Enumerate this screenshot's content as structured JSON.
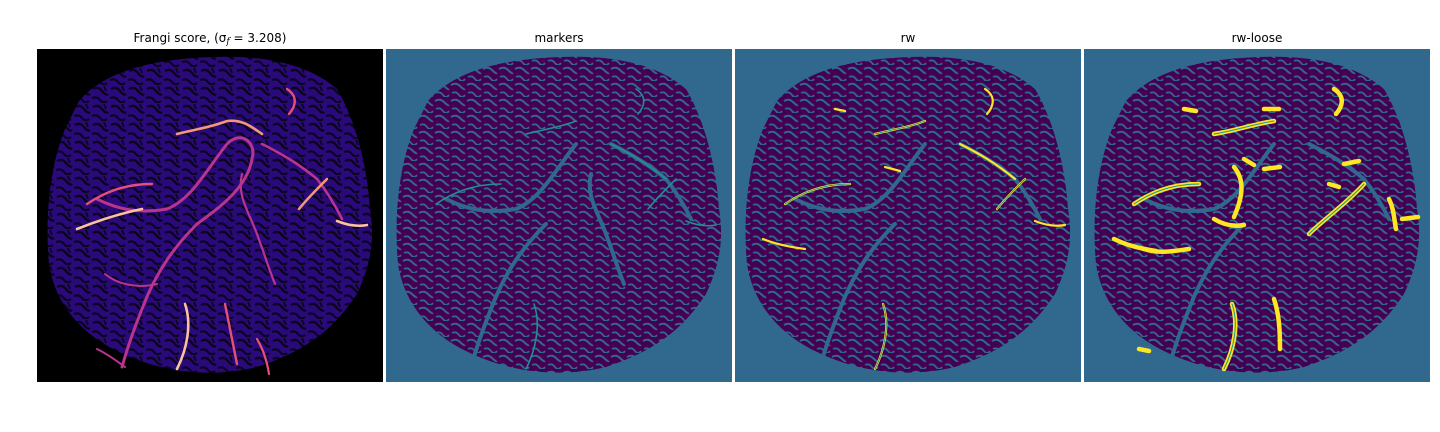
{
  "panels": [
    {
      "title": "Frangi score, (σ",
      "title_sub": "f",
      "title_suffix": " = 3.208)",
      "colormap": "magma",
      "background": "#000000"
    },
    {
      "title": "markers",
      "colormap": "viridis",
      "background": "#31688e"
    },
    {
      "title": "rw",
      "colormap": "viridis",
      "background": "#31688e"
    },
    {
      "title": "rw-loose",
      "colormap": "viridis",
      "background": "#31688e"
    }
  ],
  "colors": {
    "viridis_dark": "#440154",
    "viridis_mid": "#31688e",
    "viridis_teal": "#21918c",
    "viridis_yellow": "#fde725",
    "magma_bg": "#000000",
    "magma_tissue": "#2a0a7a",
    "magma_vessel": "#b8348f",
    "magma_bright": "#fcc2a0"
  }
}
